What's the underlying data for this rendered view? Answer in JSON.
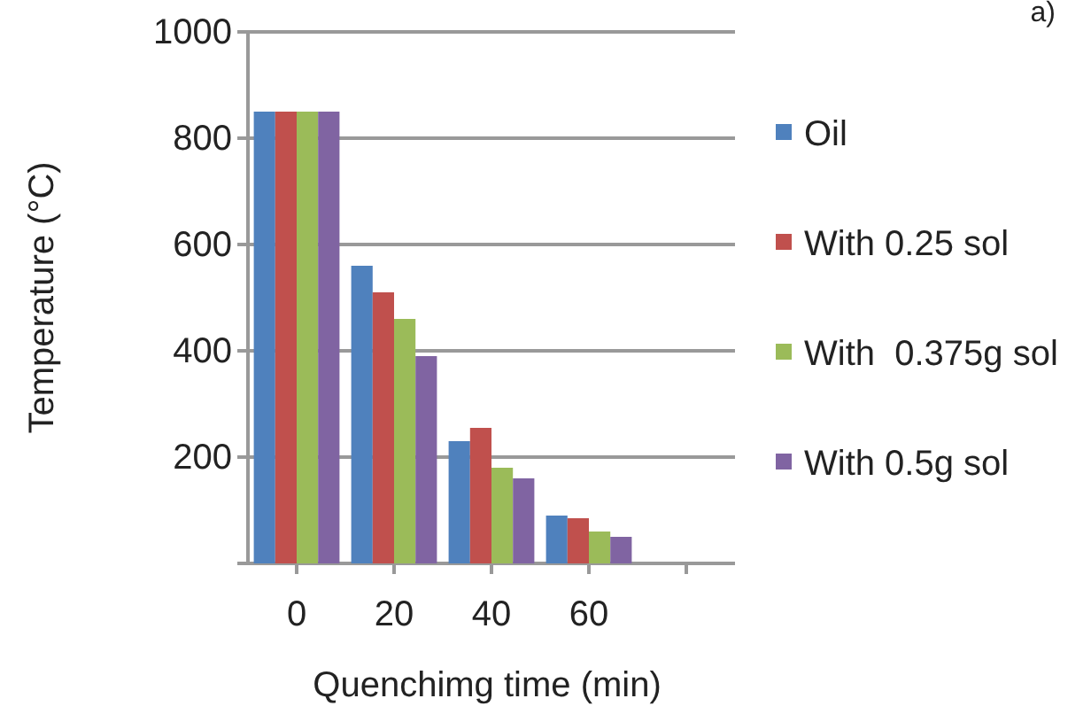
{
  "chart_data": {
    "type": "bar",
    "xlabel": "Quenchimg time (min)",
    "ylabel": "Temperature (°C)",
    "categories": [
      "0",
      "20",
      "40",
      "60",
      null
    ],
    "series": [
      {
        "name": "Oil",
        "color": "#4f81bd",
        "values": [
          850,
          560,
          230,
          90,
          null
        ]
      },
      {
        "name": "With 0.25 sol",
        "color": "#c0504d",
        "values": [
          850,
          510,
          255,
          85,
          null
        ]
      },
      {
        "name": "With  0.375g sol",
        "color": "#9bbb59",
        "values": [
          850,
          460,
          180,
          60,
          null
        ]
      },
      {
        "name": "With 0.5g sol",
        "color": "#8064a2",
        "values": [
          850,
          390,
          160,
          50,
          null
        ]
      }
    ],
    "ylim": [
      0,
      1000
    ],
    "yticks": [
      {
        "value": 0,
        "label": null
      },
      200,
      400,
      600,
      800,
      1000
    ],
    "grid": "y",
    "legend": "right",
    "annotations": [
      "a)"
    ]
  }
}
